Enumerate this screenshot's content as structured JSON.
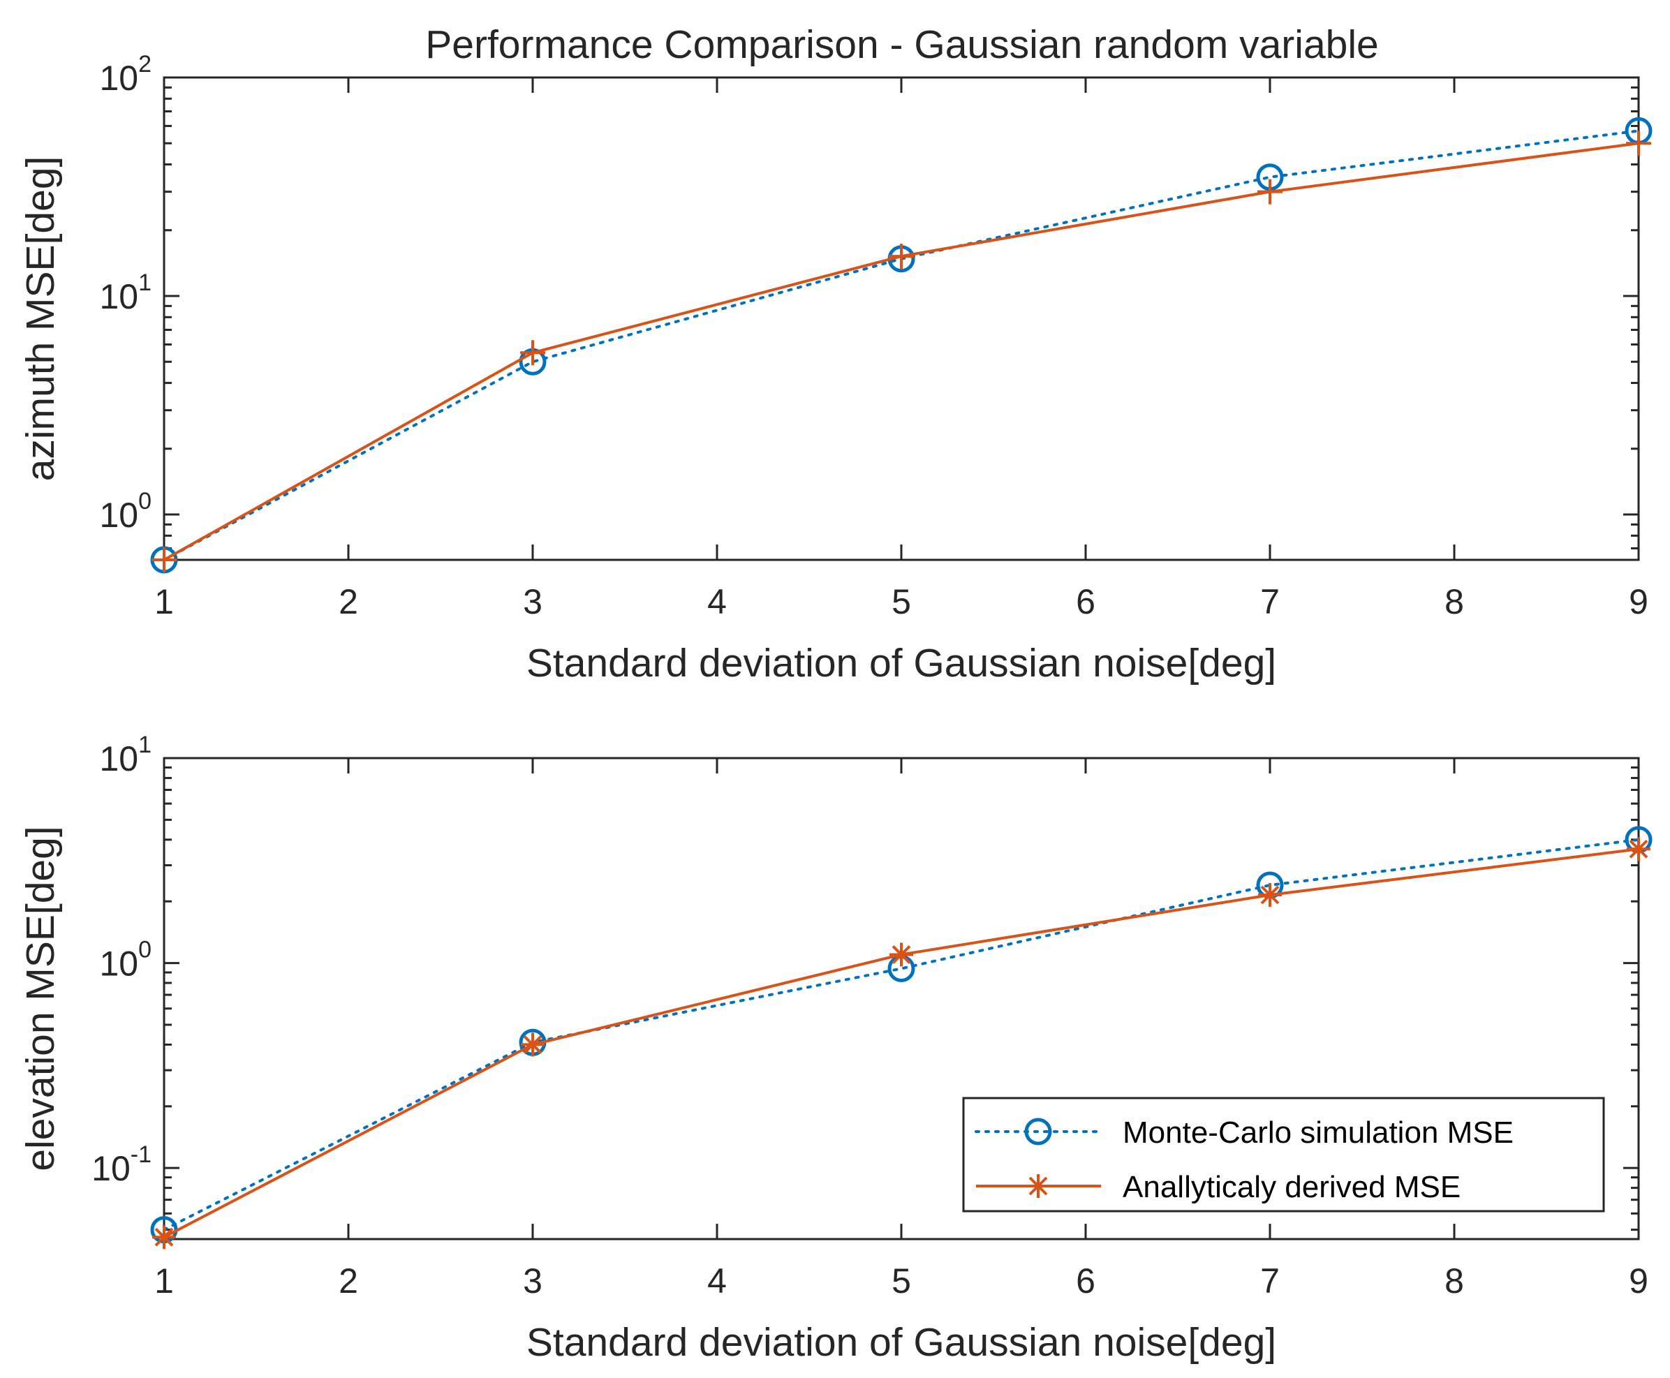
{
  "figure_title": "Performance Comparison - Gaussian random variable",
  "colors": {
    "monte_carlo": "#0072BD",
    "analytical": "#D95319",
    "axes": "#262626"
  },
  "chart_data": [
    {
      "type": "line",
      "title": "Performance Comparison - Gaussian random variable",
      "xlabel": "Standard deviation of Gaussian noise[deg]",
      "ylabel": "azimuth MSE[deg]",
      "yscale": "log",
      "xlim": [
        1,
        9
      ],
      "ylim": [
        0.62,
        100
      ],
      "xticks": [
        1,
        2,
        3,
        4,
        5,
        6,
        7,
        8,
        9
      ],
      "yticks": [
        {
          "base": "10",
          "exp": "0",
          "value": 1
        },
        {
          "base": "10",
          "exp": "1",
          "value": 10
        },
        {
          "base": "10",
          "exp": "2",
          "value": 100
        }
      ],
      "x": [
        1,
        3,
        5,
        7,
        9
      ],
      "series": [
        {
          "name": "Monte-Carlo simulation MSE",
          "marker": "circle",
          "linestyle": "dotted",
          "color": "#0072BD",
          "values": [
            0.62,
            5.0,
            14.8,
            35.0,
            57.0
          ]
        },
        {
          "name": "Anallyticaly derived MSE",
          "marker": "plus",
          "linestyle": "solid",
          "color": "#D95319",
          "values": [
            0.62,
            5.5,
            15.2,
            30.0,
            50.0
          ]
        }
      ]
    },
    {
      "type": "line",
      "title": "",
      "xlabel": "Standard deviation of Gaussian noise[deg]",
      "ylabel": "elevation MSE[deg]",
      "yscale": "log",
      "xlim": [
        1,
        9
      ],
      "ylim": [
        0.045,
        10
      ],
      "xticks": [
        1,
        2,
        3,
        4,
        5,
        6,
        7,
        8,
        9
      ],
      "yticks": [
        {
          "base": "10",
          "exp": "-1",
          "value": 0.1
        },
        {
          "base": "10",
          "exp": "0",
          "value": 1
        },
        {
          "base": "10",
          "exp": "1",
          "value": 10
        }
      ],
      "x": [
        1,
        3,
        5,
        7,
        9
      ],
      "legend_position": "bottom-right",
      "series": [
        {
          "name": "Monte-Carlo simulation MSE",
          "marker": "circle",
          "linestyle": "dotted",
          "color": "#0072BD",
          "values": [
            0.05,
            0.41,
            0.94,
            2.4,
            4.0
          ]
        },
        {
          "name": "Anallyticaly derived MSE",
          "marker": "asterisk",
          "linestyle": "solid",
          "color": "#D95319",
          "values": [
            0.046,
            0.4,
            1.1,
            2.15,
            3.6
          ]
        }
      ]
    }
  ]
}
